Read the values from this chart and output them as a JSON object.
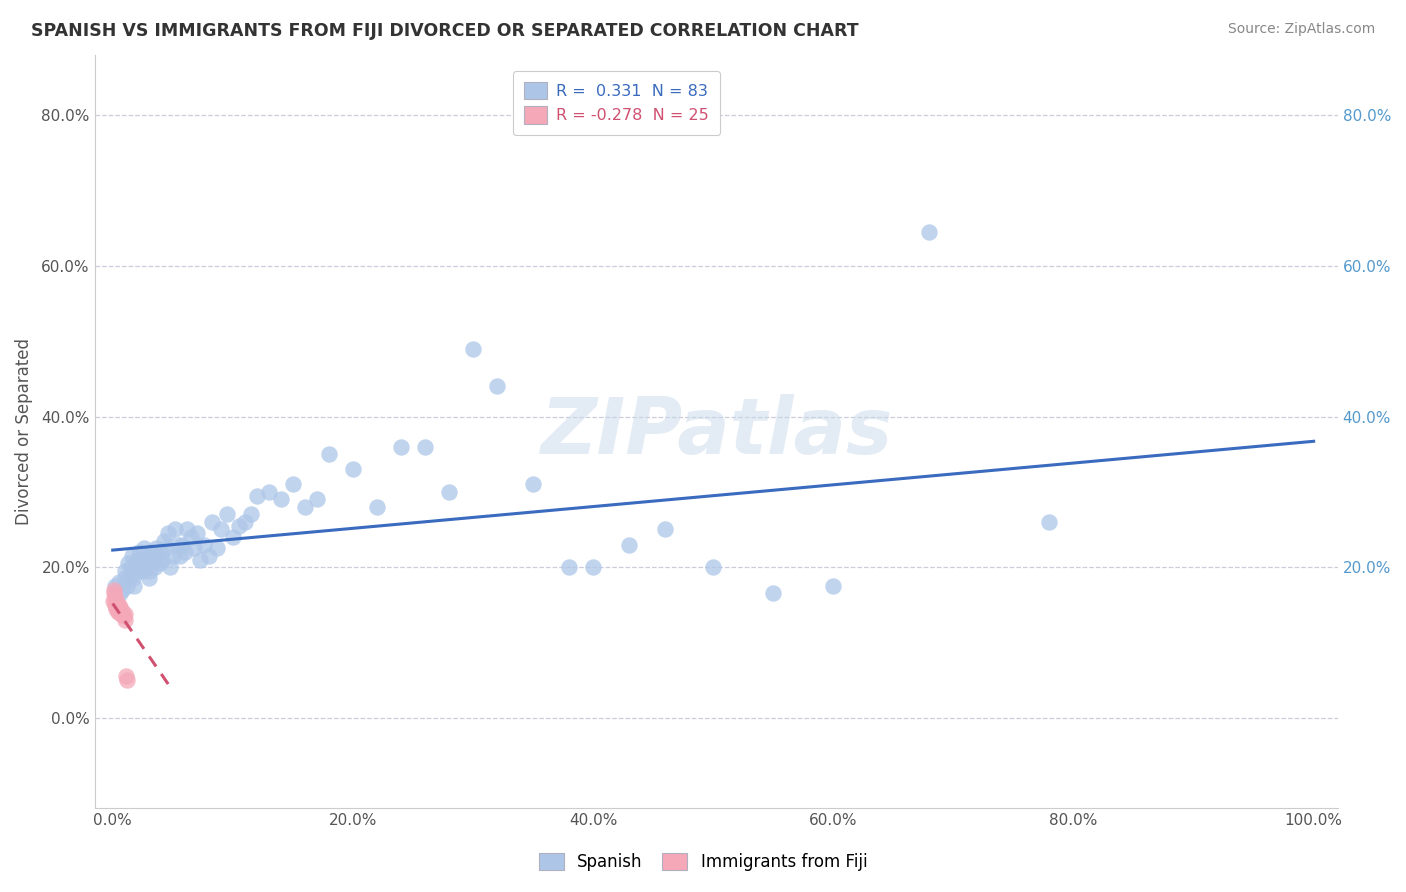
{
  "title": "SPANISH VS IMMIGRANTS FROM FIJI DIVORCED OR SEPARATED CORRELATION CHART",
  "source": "Source: ZipAtlas.com",
  "ylabel": "Divorced or Separated",
  "r_spanish": 0.331,
  "n_spanish": 83,
  "r_fiji": -0.278,
  "n_fiji": 25,
  "blue_color": "#adc6e8",
  "pink_color": "#f4a8b8",
  "blue_line_color": "#3a6bbf",
  "pink_line_color": "#d05070",
  "watermark": "ZIPatlas",
  "right_tick_color": "#5599cc",
  "spanish_x": [
    0.002,
    0.005,
    0.006,
    0.008,
    0.01,
    0.01,
    0.012,
    0.013,
    0.015,
    0.015,
    0.016,
    0.017,
    0.018,
    0.02,
    0.02,
    0.021,
    0.022,
    0.023,
    0.025,
    0.025,
    0.026,
    0.027,
    0.028,
    0.03,
    0.03,
    0.031,
    0.032,
    0.033,
    0.035,
    0.036,
    0.038,
    0.039,
    0.04,
    0.041,
    0.043,
    0.044,
    0.046,
    0.048,
    0.05,
    0.052,
    0.054,
    0.056,
    0.058,
    0.06,
    0.062,
    0.065,
    0.068,
    0.07,
    0.073,
    0.076,
    0.08,
    0.083,
    0.087,
    0.09,
    0.095,
    0.1,
    0.105,
    0.11,
    0.115,
    0.12,
    0.13,
    0.14,
    0.15,
    0.16,
    0.17,
    0.18,
    0.2,
    0.22,
    0.24,
    0.26,
    0.28,
    0.3,
    0.32,
    0.35,
    0.38,
    0.4,
    0.43,
    0.46,
    0.5,
    0.55,
    0.6,
    0.68,
    0.78
  ],
  "spanish_y": [
    0.175,
    0.18,
    0.165,
    0.17,
    0.195,
    0.185,
    0.175,
    0.205,
    0.19,
    0.2,
    0.215,
    0.185,
    0.175,
    0.2,
    0.21,
    0.195,
    0.22,
    0.21,
    0.195,
    0.205,
    0.225,
    0.2,
    0.215,
    0.185,
    0.21,
    0.195,
    0.22,
    0.21,
    0.2,
    0.225,
    0.215,
    0.205,
    0.22,
    0.21,
    0.235,
    0.225,
    0.245,
    0.2,
    0.215,
    0.25,
    0.23,
    0.215,
    0.23,
    0.22,
    0.25,
    0.24,
    0.225,
    0.245,
    0.21,
    0.23,
    0.215,
    0.26,
    0.225,
    0.25,
    0.27,
    0.24,
    0.255,
    0.26,
    0.27,
    0.295,
    0.3,
    0.29,
    0.31,
    0.28,
    0.29,
    0.35,
    0.33,
    0.28,
    0.36,
    0.36,
    0.3,
    0.49,
    0.44,
    0.31,
    0.2,
    0.2,
    0.23,
    0.25,
    0.2,
    0.165,
    0.175,
    0.645,
    0.26
  ],
  "fiji_x": [
    0.0,
    0.001,
    0.001,
    0.002,
    0.002,
    0.002,
    0.003,
    0.003,
    0.003,
    0.004,
    0.004,
    0.004,
    0.005,
    0.005,
    0.005,
    0.006,
    0.006,
    0.007,
    0.007,
    0.008,
    0.009,
    0.01,
    0.01,
    0.011,
    0.012
  ],
  "fiji_y": [
    0.155,
    0.17,
    0.165,
    0.16,
    0.155,
    0.15,
    0.155,
    0.15,
    0.145,
    0.15,
    0.145,
    0.14,
    0.15,
    0.145,
    0.14,
    0.145,
    0.14,
    0.145,
    0.138,
    0.14,
    0.135,
    0.138,
    0.13,
    0.055,
    0.05
  ],
  "xlim": [
    -0.015,
    1.02
  ],
  "ylim": [
    -0.12,
    0.88
  ],
  "xticks": [
    0.0,
    0.2,
    0.4,
    0.6,
    0.8,
    1.0
  ],
  "yticks": [
    0.0,
    0.2,
    0.4,
    0.6,
    0.8
  ],
  "right_yticks": [
    0.2,
    0.4,
    0.6,
    0.8
  ],
  "right_ytick_labels": [
    "20.0%",
    "40.0%",
    "60.0%",
    "80.0%"
  ]
}
